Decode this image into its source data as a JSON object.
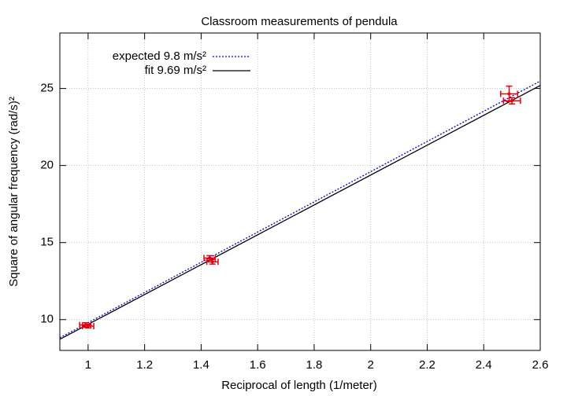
{
  "chart_data": {
    "type": "scatter",
    "title": "Classroom measurements of pendula",
    "x_label": "Reciprocal of length (1/meter)",
    "y_label": "Square of angular frequency (rad/s)²",
    "xlim": [
      0.9,
      2.6
    ],
    "ylim": [
      8,
      28.6
    ],
    "xticks": [
      1,
      1.2,
      1.4,
      1.6,
      1.8,
      2,
      2.2,
      2.4,
      2.6
    ],
    "yticks": [
      10,
      15,
      20,
      25
    ],
    "grid": true,
    "legend": "top-left",
    "series": [
      {
        "name": "expected 9.8 m/s²",
        "type": "line",
        "style": "dotted",
        "color": "#0000cc",
        "x": [
          0.9,
          2.6
        ],
        "values": [
          8.82,
          25.48
        ]
      },
      {
        "name": "fit 9.69 m/s²",
        "type": "line",
        "style": "solid",
        "color": "#000000",
        "x": [
          0.9,
          2.6
        ],
        "values": [
          8.721,
          25.194
        ]
      },
      {
        "type": "errorbars",
        "color": "#e8000b",
        "x": [
          0.99,
          1.0,
          1.43,
          1.44,
          2.49,
          2.5
        ],
        "values": [
          9.65,
          9.58,
          14.0,
          13.75,
          24.65,
          24.2
        ],
        "xerr": [
          0.02,
          0.02,
          0.02,
          0.02,
          0.03,
          0.03
        ],
        "yerr": [
          0.15,
          0.12,
          0.15,
          0.15,
          0.5,
          0.2
        ]
      }
    ]
  }
}
